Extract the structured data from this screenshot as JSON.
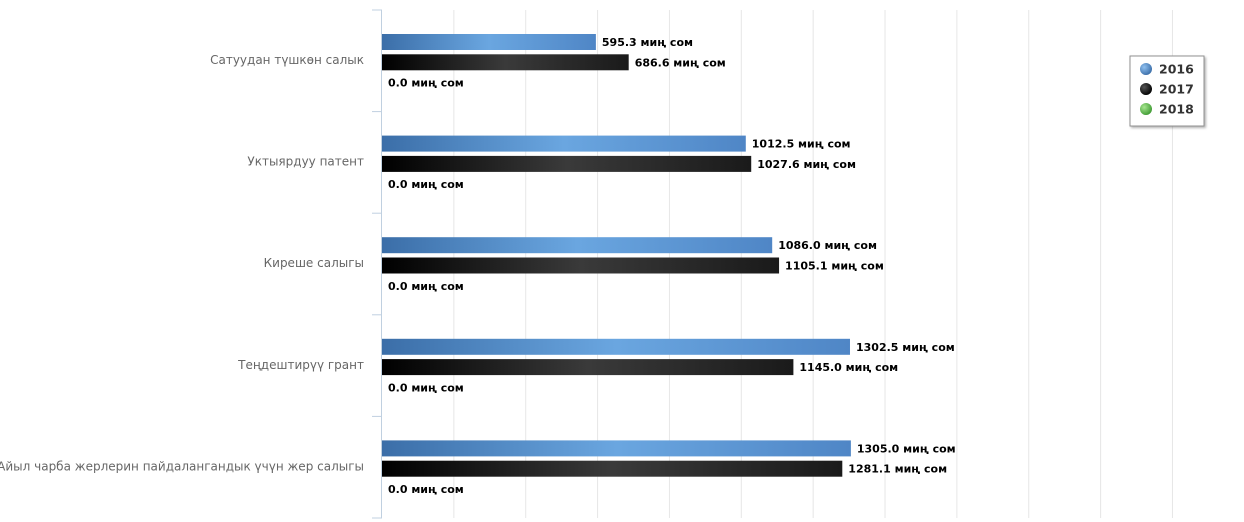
{
  "chart_data": {
    "type": "bar",
    "orientation": "horizontal",
    "categories": [
      "Сатуудан түшкөн салык",
      "Уктыярдуу патент",
      "Киреше салыгы",
      "Теңдештирүү грант",
      "Айыл чарба жерлерин пайдалангандык үчүн жер салыгы"
    ],
    "series": [
      {
        "name": "2016",
        "color": "#4f86c6",
        "values": [
          595.3,
          1012.5,
          1086.0,
          1302.5,
          1305.0
        ]
      },
      {
        "name": "2017",
        "color": "#222222",
        "values": [
          686.6,
          1027.6,
          1105.1,
          1145.0,
          1281.1
        ]
      },
      {
        "name": "2018",
        "color": "#55bb44",
        "values": [
          0.0,
          0.0,
          0.0,
          0.0,
          0.0
        ]
      }
    ],
    "value_suffix": " миң сом",
    "xlim": [
      0,
      2400
    ],
    "grid": true,
    "legend_position": "top-right"
  }
}
